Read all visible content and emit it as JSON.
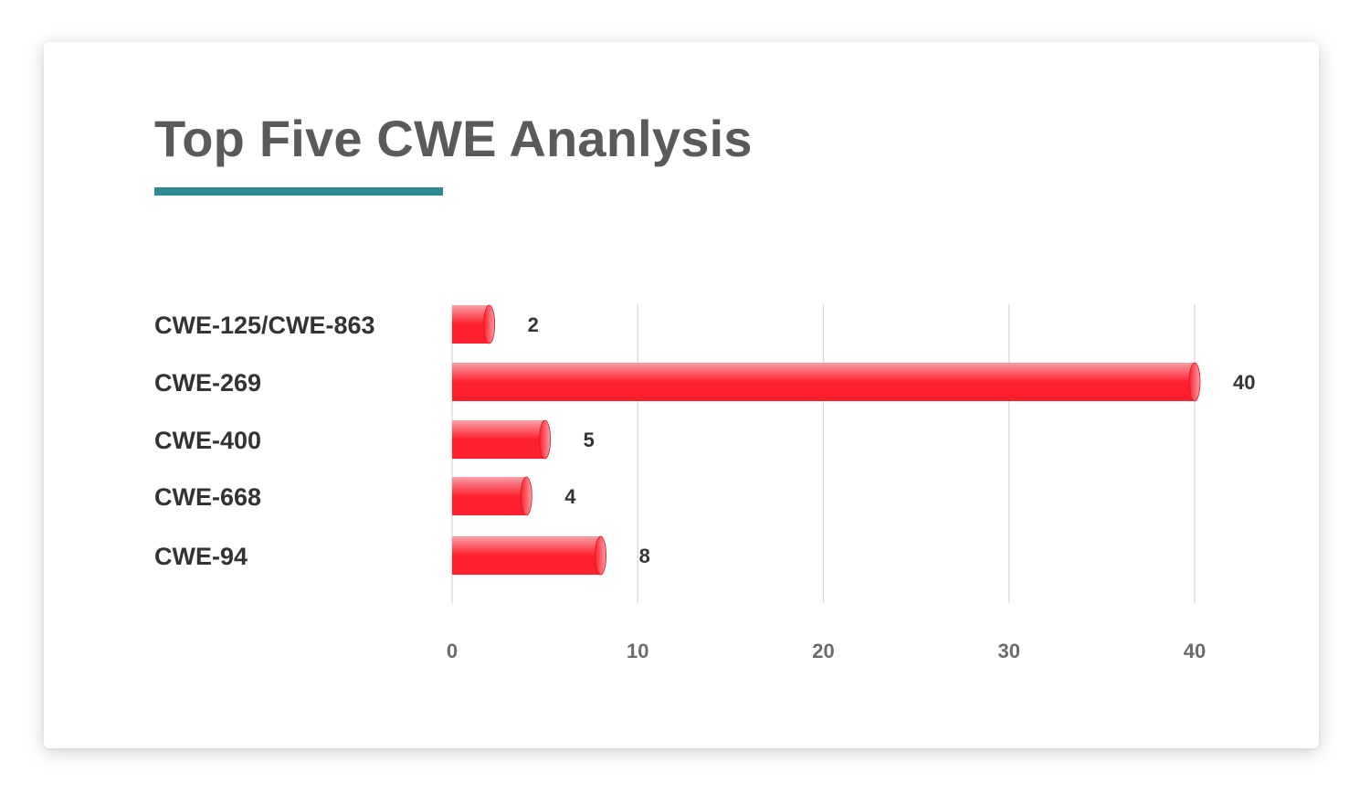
{
  "title": "Top Five CWE Ananlysis",
  "colors": {
    "title_text": "#5a5a5a",
    "underline": "#2f8a96",
    "bar": "#ff1f2e",
    "bar_highlight": "#f7a1a6",
    "gridline": "#d9d9d9",
    "category_text": "#333333",
    "tick_text": "#6b6b6b"
  },
  "chart_data": {
    "type": "bar",
    "orientation": "horizontal",
    "title": "Top Five CWE Ananlysis",
    "categories": [
      "CWE-125/CWE-863",
      "CWE-269",
      "CWE-400",
      "CWE-668",
      "CWE-94"
    ],
    "values": [
      2,
      40,
      5,
      4,
      8
    ],
    "value_labels": [
      "2",
      "40",
      "5",
      "4",
      "8"
    ],
    "xlim": [
      0,
      40
    ],
    "xticks": [
      0,
      10,
      20,
      30,
      40
    ],
    "xtick_labels": [
      "0",
      "10",
      "20",
      "30",
      "40"
    ],
    "xlabel": "",
    "ylabel": "",
    "grid": "vertical",
    "legend": "none"
  }
}
